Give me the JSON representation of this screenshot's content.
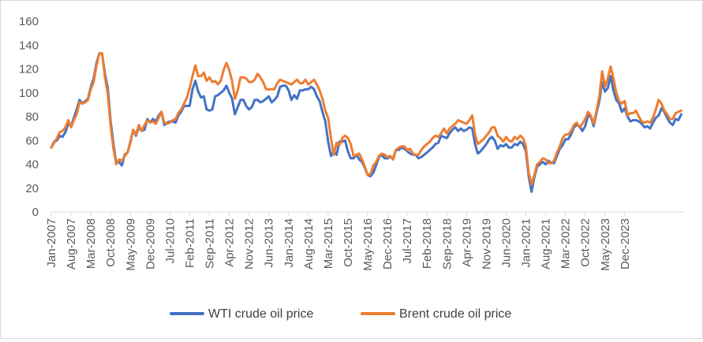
{
  "chart_data": {
    "type": "line",
    "title": "",
    "xlabel": "",
    "ylabel": "",
    "ylim": [
      0,
      160
    ],
    "yticks": [
      0,
      20,
      40,
      60,
      80,
      100,
      120,
      140,
      160
    ],
    "grid": false,
    "legend_position": "bottom",
    "x_tick_labels": [
      "Jan-2007",
      "Aug-2007",
      "Mar-2008",
      "Oct-2008",
      "May-2009",
      "Dec-2009",
      "Jul-2010",
      "Feb-2011",
      "Sep-2011",
      "Apr-2012",
      "Nov-2012",
      "Jun-2013",
      "Jan-2014",
      "Aug-2014",
      "Mar-2015",
      "Oct-2015",
      "May-2016",
      "Dec-2016",
      "Jul-2017",
      "Feb-2018",
      "Sep-2018",
      "Apr-2019",
      "Nov-2019",
      "Jun-2020",
      "Jan-2021",
      "Aug-2021",
      "Mar-2022",
      "Oct-2022",
      "May-2023",
      "Dec-2023"
    ],
    "x_start": "Jan-2007",
    "x_end": "Jun-2024",
    "frequency": "monthly",
    "series": [
      {
        "name": "WTI crude oil price",
        "color": "#4472c4",
        "values": [
          54,
          59,
          60,
          64,
          63,
          67,
          74,
          72,
          79,
          86,
          94,
          91,
          93,
          95,
          105,
          112,
          125,
          133,
          133,
          116,
          104,
          76,
          57,
          41,
          42,
          39,
          48,
          50,
          59,
          69,
          64,
          71,
          68,
          69,
          78,
          75,
          78,
          76,
          81,
          84,
          73,
          75,
          76,
          76,
          75,
          81,
          84,
          89,
          89,
          89,
          103,
          110,
          101,
          96,
          97,
          86,
          85,
          86,
          97,
          98,
          100,
          102,
          106,
          100,
          95,
          82,
          88,
          94,
          94,
          89,
          86,
          88,
          94,
          94,
          92,
          93,
          95,
          97,
          92,
          94,
          97,
          105,
          106,
          106,
          102,
          94,
          98,
          95,
          102,
          102,
          103,
          103,
          105,
          103,
          97,
          93,
          84,
          76,
          59,
          47,
          51,
          48,
          59,
          59,
          60,
          51,
          45,
          45,
          48,
          44,
          42,
          37,
          31,
          30,
          33,
          39,
          46,
          48,
          45,
          45,
          46,
          45,
          52,
          52,
          54,
          53,
          51,
          49,
          48,
          48,
          45,
          46,
          48,
          50,
          52,
          54,
          57,
          58,
          64,
          63,
          62,
          66,
          69,
          71,
          68,
          70,
          68,
          69,
          71,
          70,
          57,
          49,
          51,
          54,
          57,
          61,
          63,
          60,
          53,
          56,
          55,
          57,
          54,
          54,
          57,
          56,
          59,
          57,
          51,
          30,
          17,
          29,
          38,
          40,
          42,
          40,
          43,
          41,
          41,
          47,
          53,
          56,
          61,
          61,
          65,
          71,
          73,
          72,
          68,
          72,
          81,
          80,
          72,
          83,
          93,
          109,
          101,
          104,
          114,
          102,
          94,
          91,
          84,
          87,
          80,
          76,
          77,
          77,
          76,
          74,
          71,
          72,
          70,
          75,
          79,
          81,
          87,
          84,
          79,
          75,
          73,
          78,
          77,
          82
        ]
      },
      {
        "name": "Brent crude oil price",
        "color": "#ed7d31",
        "values": [
          54,
          58,
          62,
          67,
          68,
          71,
          77,
          71,
          77,
          82,
          92,
          91,
          92,
          94,
          103,
          109,
          123,
          133,
          133,
          113,
          99,
          72,
          53,
          40,
          44,
          43,
          47,
          50,
          58,
          69,
          65,
          73,
          68,
          73,
          77,
          75,
          76,
          74,
          79,
          84,
          75,
          74,
          75,
          77,
          78,
          83,
          86,
          91,
          96,
          104,
          114,
          123,
          114,
          114,
          117,
          110,
          113,
          109,
          110,
          107,
          110,
          119,
          125,
          119,
          110,
          95,
          102,
          113,
          113,
          112,
          109,
          109,
          111,
          116,
          113,
          109,
          103,
          103,
          103,
          103,
          108,
          111,
          110,
          109,
          108,
          107,
          109,
          111,
          108,
          108,
          111,
          107,
          109,
          111,
          107,
          102,
          95,
          85,
          79,
          62,
          48,
          58,
          56,
          62,
          64,
          62,
          57,
          47,
          48,
          49,
          44,
          38,
          31,
          32,
          39,
          42,
          47,
          49,
          48,
          46,
          47,
          44,
          52,
          54,
          55,
          55,
          52,
          53,
          49,
          48,
          48,
          52,
          55,
          57,
          59,
          62,
          64,
          63,
          66,
          70,
          66,
          70,
          72,
          74,
          77,
          76,
          75,
          74,
          77,
          81,
          65,
          57,
          59,
          61,
          64,
          67,
          71,
          71,
          64,
          62,
          59,
          63,
          60,
          59,
          63,
          61,
          64,
          62,
          55,
          33,
          23,
          31,
          40,
          42,
          45,
          44,
          41,
          41,
          43,
          50,
          55,
          62,
          65,
          65,
          68,
          73,
          75,
          71,
          74,
          78,
          84,
          81,
          74,
          85,
          97,
          118,
          105,
          112,
          122,
          112,
          100,
          93,
          91,
          93,
          81,
          83,
          83,
          85,
          80,
          76,
          75,
          76,
          75,
          79,
          86,
          94,
          91,
          85,
          82,
          78,
          78,
          83,
          84,
          85
        ]
      }
    ]
  }
}
